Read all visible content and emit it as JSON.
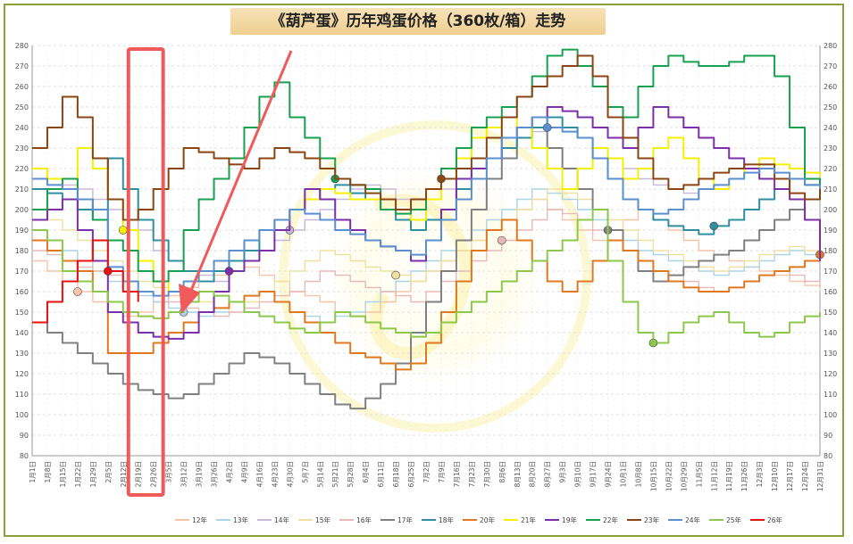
{
  "chart_data": {
    "type": "line",
    "title": "《葫芦蛋》历年鸡蛋价格（360枚/箱）走势",
    "xlabel": "",
    "ylabel": "",
    "ylim": [
      80,
      280
    ],
    "yticks": [
      80,
      90,
      100,
      110,
      120,
      130,
      140,
      150,
      160,
      170,
      180,
      190,
      200,
      210,
      220,
      230,
      240,
      250,
      260,
      270,
      280
    ],
    "grid": true,
    "legend_position": "bottom",
    "x_labels": [
      "1月1日",
      "1月8日",
      "1月15日",
      "1月22日",
      "1月29日",
      "2月5日",
      "2月12日",
      "2月19日",
      "2月26日",
      "3月5日",
      "3月12日",
      "3月19日",
      "3月26日",
      "4月2日",
      "4月9日",
      "4月16日",
      "4月23日",
      "4月30日",
      "5月7日",
      "5月14日",
      "5月21日",
      "5月28日",
      "6月4日",
      "6月11日",
      "6月18日",
      "6月25日",
      "7月2日",
      "7月9日",
      "7月16日",
      "7月23日",
      "7月30日",
      "8月6日",
      "8月13日",
      "8月20日",
      "8月27日",
      "9月3日",
      "9月10日",
      "9月17日",
      "9月24日",
      "10月1日",
      "10月8日",
      "10月15日",
      "10月22日",
      "10月29日",
      "11月5日",
      "11月12日",
      "11月19日",
      "11月26日",
      "12月3日",
      "12月10日",
      "12月17日",
      "12月24日",
      "12月31日"
    ],
    "highlight": {
      "from": "2月12日",
      "to": "3月5日"
    },
    "series": [
      {
        "name": "12年",
        "color": "#f5c4a8",
        "values": [
          175,
          170,
          165,
          160,
          155,
          150,
          148,
          150,
          155,
          158,
          162,
          165,
          168,
          170,
          172,
          168,
          165,
          160,
          158,
          155,
          150,
          148,
          150,
          155,
          160,
          165,
          170,
          175,
          180,
          185,
          190,
          195,
          200,
          205,
          200,
          195,
          190,
          185,
          190,
          195,
          200,
          195,
          190,
          185,
          180,
          178,
          175,
          172,
          170,
          168,
          165,
          163,
          160
        ]
      },
      {
        "name": "13年",
        "color": "#a8d4e6",
        "values": [
          190,
          185,
          180,
          175,
          170,
          165,
          160,
          158,
          155,
          152,
          150,
          148,
          150,
          155,
          158,
          160,
          155,
          150,
          148,
          145,
          148,
          150,
          155,
          160,
          165,
          170,
          175,
          180,
          185,
          190,
          195,
          200,
          205,
          210,
          208,
          205,
          200,
          195,
          190,
          185,
          180,
          178,
          175,
          172,
          170,
          168,
          170,
          172,
          175,
          178,
          180,
          178,
          176
        ]
      },
      {
        "name": "14年",
        "color": "#c8b8d8",
        "values": [
          220,
          215,
          212,
          210,
          205,
          200,
          195,
          190,
          180,
          175,
          170,
          168,
          165,
          170,
          175,
          180,
          185,
          190,
          195,
          200,
          205,
          210,
          212,
          210,
          205,
          200,
          205,
          210,
          215,
          220,
          225,
          230,
          235,
          238,
          240,
          238,
          235,
          230,
          225,
          220,
          215,
          212,
          210,
          208,
          210,
          212,
          215,
          218,
          220,
          222,
          220,
          218,
          216
        ]
      },
      {
        "name": "15年",
        "color": "#f0e0a0",
        "values": [
          200,
          195,
          190,
          185,
          180,
          175,
          170,
          165,
          162,
          160,
          158,
          155,
          152,
          150,
          155,
          160,
          165,
          170,
          175,
          180,
          178,
          175,
          172,
          170,
          168,
          165,
          170,
          175,
          180,
          185,
          190,
          195,
          200,
          205,
          210,
          208,
          205,
          200,
          195,
          190,
          185,
          180,
          178,
          175,
          172,
          170,
          172,
          175,
          178,
          180,
          182,
          180,
          178
        ]
      },
      {
        "name": "16年",
        "color": "#e8b8b8",
        "values": [
          180,
          178,
          175,
          172,
          170,
          168,
          165,
          160,
          158,
          155,
          152,
          150,
          148,
          150,
          152,
          155,
          158,
          160,
          165,
          170,
          168,
          165,
          162,
          160,
          158,
          155,
          160,
          165,
          170,
          175,
          180,
          185,
          190,
          195,
          200,
          198,
          195,
          190,
          185,
          180,
          175,
          170,
          168,
          165,
          162,
          160,
          162,
          165,
          168,
          170,
          168,
          165,
          162
        ]
      },
      {
        "name": "17年",
        "color": "#808080",
        "values": [
          145,
          140,
          135,
          130,
          125,
          120,
          115,
          112,
          110,
          108,
          110,
          115,
          120,
          125,
          130,
          128,
          125,
          120,
          115,
          110,
          105,
          103,
          108,
          115,
          125,
          140,
          155,
          170,
          185,
          200,
          215,
          225,
          235,
          240,
          230,
          220,
          210,
          200,
          190,
          180,
          170,
          165,
          168,
          172,
          175,
          178,
          180,
          185,
          190,
          195,
          200,
          205,
          210
        ]
      },
      {
        "name": "18年",
        "color": "#2f8fa0",
        "values": [
          210,
          208,
          205,
          200,
          195,
          225,
          210,
          195,
          185,
          175,
          170,
          165,
          170,
          175,
          180,
          190,
          195,
          200,
          205,
          210,
          212,
          208,
          205,
          200,
          195,
          190,
          195,
          200,
          210,
          220,
          225,
          230,
          235,
          240,
          245,
          240,
          235,
          225,
          215,
          205,
          200,
          195,
          192,
          190,
          188,
          192,
          195,
          200,
          205,
          210,
          215,
          212,
          210
        ]
      },
      {
        "name": "20年",
        "color": "#e07820",
        "values": [
          185,
          180,
          175,
          170,
          160,
          130,
          130,
          130,
          135,
          140,
          145,
          150,
          152,
          155,
          158,
          160,
          155,
          150,
          145,
          140,
          135,
          130,
          128,
          125,
          122,
          125,
          135,
          150,
          165,
          180,
          190,
          195,
          185,
          175,
          165,
          160,
          165,
          175,
          185,
          180,
          175,
          170,
          165,
          162,
          160,
          160,
          162,
          165,
          168,
          170,
          172,
          175,
          178
        ]
      },
      {
        "name": "21年",
        "color": "#f5f000",
        "values": [
          220,
          215,
          210,
          230,
          220,
          205,
          190,
          175,
          165,
          160,
          165,
          170,
          175,
          180,
          185,
          190,
          195,
          200,
          205,
          210,
          208,
          205,
          205,
          205,
          200,
          195,
          205,
          215,
          225,
          235,
          240,
          245,
          240,
          230,
          220,
          210,
          220,
          230,
          225,
          215,
          220,
          230,
          235,
          225,
          215,
          210,
          215,
          220,
          225,
          222,
          220,
          218,
          216
        ]
      },
      {
        "name": "19年",
        "color": "#7b2fa8",
        "values": [
          195,
          200,
          205,
          190,
          175,
          150,
          145,
          140,
          138,
          137,
          140,
          150,
          160,
          170,
          175,
          180,
          190,
          200,
          210,
          205,
          195,
          190,
          185,
          182,
          180,
          175,
          185,
          200,
          215,
          220,
          225,
          235,
          240,
          245,
          250,
          248,
          245,
          240,
          235,
          230,
          240,
          250,
          245,
          240,
          235,
          230,
          225,
          220,
          215,
          210,
          205,
          195,
          175
        ]
      },
      {
        "name": "22年",
        "color": "#18a050",
        "values": [
          200,
          210,
          215,
          205,
          195,
          185,
          180,
          170,
          165,
          170,
          190,
          205,
          215,
          225,
          240,
          255,
          262,
          245,
          235,
          225,
          215,
          212,
          210,
          200,
          198,
          200,
          210,
          220,
          230,
          240,
          245,
          250,
          255,
          265,
          275,
          278,
          270,
          260,
          250,
          245,
          260,
          270,
          275,
          272,
          270,
          270,
          272,
          275,
          275,
          265,
          240,
          215,
          210
        ]
      },
      {
        "name": "23年",
        "color": "#8b4513",
        "values": [
          230,
          240,
          255,
          245,
          225,
          205,
          195,
          200,
          210,
          220,
          230,
          228,
          225,
          222,
          220,
          225,
          230,
          228,
          225,
          220,
          215,
          212,
          208,
          205,
          200,
          205,
          210,
          215,
          220,
          225,
          235,
          245,
          255,
          260,
          265,
          270,
          275,
          265,
          245,
          235,
          225,
          215,
          210,
          212,
          215,
          218,
          220,
          222,
          222,
          215,
          208,
          205,
          210
        ]
      },
      {
        "name": "24年",
        "color": "#5b8fd0",
        "values": [
          215,
          212,
          210,
          205,
          200,
          172,
          165,
          160,
          158,
          160,
          165,
          170,
          175,
          180,
          185,
          190,
          195,
          200,
          198,
          195,
          190,
          188,
          185,
          182,
          180,
          178,
          185,
          195,
          205,
          215,
          225,
          235,
          240,
          245,
          240,
          238,
          235,
          225,
          215,
          205,
          200,
          198,
          200,
          205,
          210,
          212,
          215,
          218,
          220,
          218,
          215,
          212,
          210
        ]
      },
      {
        "name": "25年",
        "color": "#8cc84b",
        "values": [
          190,
          185,
          170,
          165,
          160,
          155,
          150,
          148,
          147,
          150,
          155,
          160,
          158,
          155,
          150,
          148,
          145,
          142,
          140,
          145,
          150,
          148,
          145,
          142,
          140,
          138,
          140,
          145,
          150,
          155,
          160,
          165,
          170,
          175,
          180,
          185,
          195,
          200,
          175,
          155,
          140,
          135,
          140,
          145,
          148,
          150,
          145,
          140,
          138,
          140,
          145,
          148,
          150
        ]
      },
      {
        "name": "26年",
        "color": "#e81010",
        "values": [
          145,
          155,
          165,
          175,
          185,
          170,
          160,
          155
        ]
      }
    ],
    "annotations": [
      "红框标注区间：2月中旬至3月初（春节后价格低位）",
      "红色箭头指向低位区间"
    ]
  }
}
